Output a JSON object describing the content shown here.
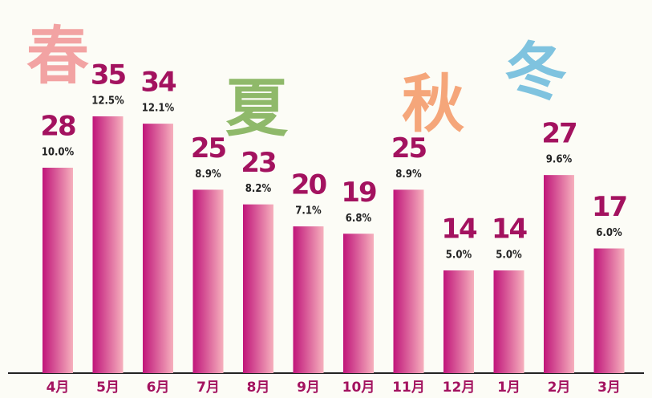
{
  "chart_data": {
    "type": "bar",
    "categories": [
      "4月",
      "5月",
      "6月",
      "7月",
      "8月",
      "9月",
      "10月",
      "11月",
      "12月",
      "1月",
      "2月",
      "3月"
    ],
    "values": [
      28,
      35,
      34,
      25,
      23,
      20,
      19,
      25,
      14,
      14,
      27,
      17
    ],
    "shares": [
      10.0,
      12.5,
      12.1,
      8.9,
      8.2,
      7.1,
      6.8,
      8.9,
      5.0,
      5.0,
      9.6,
      6.0
    ],
    "share_labels": [
      "10.0%",
      "12.5%",
      "12.1%",
      "8.9%",
      "8.2%",
      "7.1%",
      "6.8%",
      "8.9%",
      "5.0%",
      "5.0%",
      "9.6%",
      "6.0%"
    ],
    "color": "#c0157a",
    "annotations": [
      {
        "text": "春",
        "color": "#f2a3a3"
      },
      {
        "text": "夏",
        "color": "#8fb96a"
      },
      {
        "text": "秋",
        "color": "#f5a67a"
      },
      {
        "text": "冬",
        "color": "#7fc3df"
      }
    ]
  }
}
